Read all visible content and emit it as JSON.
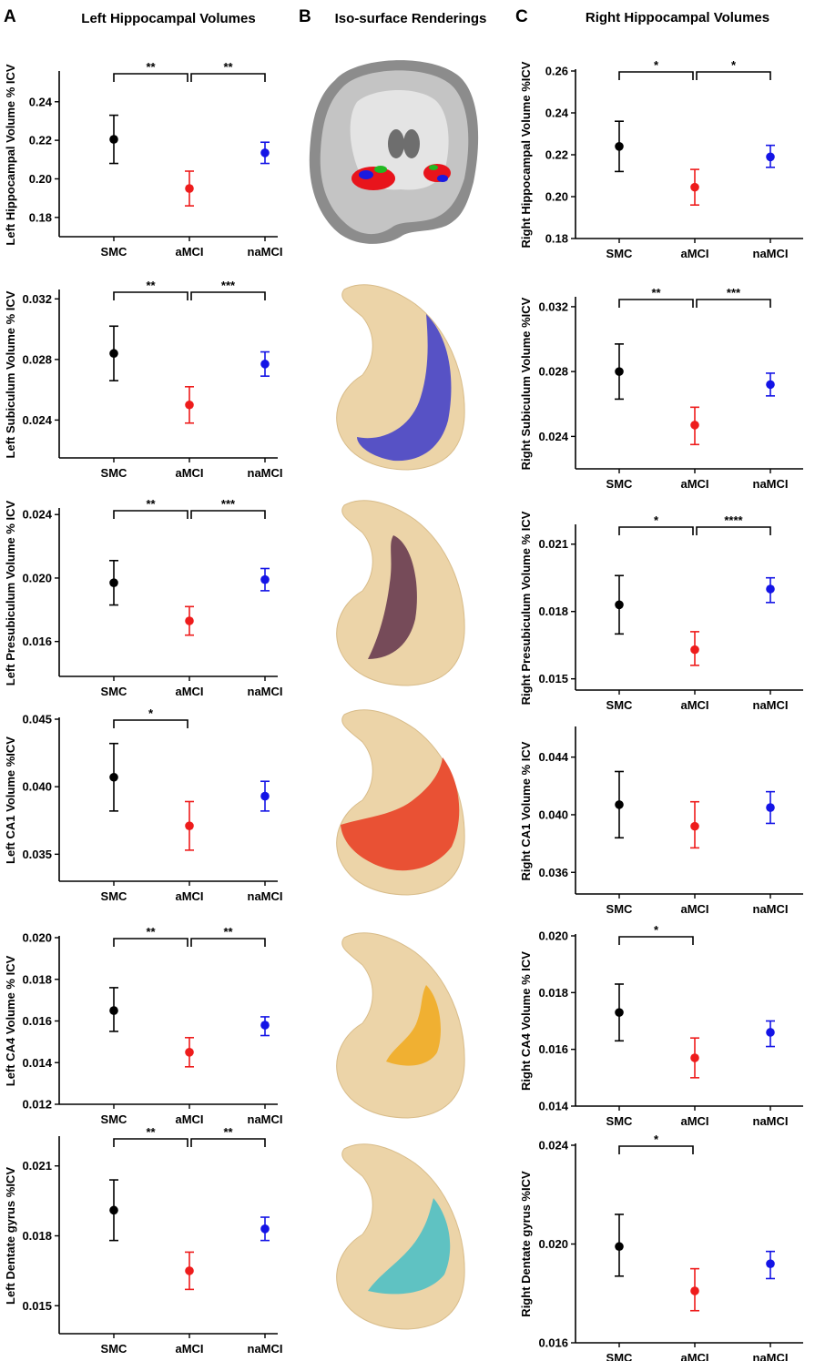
{
  "headers": {
    "panel_a": "A",
    "panel_b": "B",
    "panel_c": "C",
    "title_left": "Left Hippocampal Volumes",
    "title_middle": "Iso-surface Renderings",
    "title_right": "Right Hippocampal Volumes"
  },
  "colors": {
    "SMC": "#000000",
    "aMCI": "#ee1c1c",
    "naMCI": "#1414e6",
    "hippocampus_surface": "#ecd4a8",
    "subiculum": "#4a46c8",
    "presubiculum": "#6b3f52",
    "ca1": "#e8452a",
    "ca4": "#f0ac28",
    "dentate_gyrus": "#52c0c4"
  },
  "renderings": [
    {
      "name": "whole-brain-coronal-rendering"
    },
    {
      "name": "subiculum-rendering",
      "fill": "subiculum"
    },
    {
      "name": "presubiculum-rendering",
      "fill": "presubiculum"
    },
    {
      "name": "ca1-rendering",
      "fill": "ca1"
    },
    {
      "name": "ca4-rendering",
      "fill": "ca4"
    },
    {
      "name": "dentate-gyrus-rendering",
      "fill": "dentate_gyrus"
    }
  ],
  "chart_data": [
    {
      "id": "left-hippocampal",
      "type": "scatter",
      "ylabel": "Left Hippocampal Volume % ICV",
      "categories": [
        "SMC",
        "aMCI",
        "naMCI"
      ],
      "ylim": [
        0.17,
        0.255
      ],
      "yticks": [
        0.18,
        0.2,
        0.22,
        0.24
      ],
      "ytick_labels": [
        "0.18",
        "0.20",
        "0.22",
        "0.24"
      ],
      "means": [
        0.2205,
        0.195,
        0.2135
      ],
      "err_low": [
        0.208,
        0.186,
        0.208
      ],
      "err_high": [
        0.233,
        0.204,
        0.219
      ],
      "significance": [
        {
          "from": 0,
          "to": 1,
          "label": "**"
        },
        {
          "from": 1,
          "to": 2,
          "label": "**"
        }
      ]
    },
    {
      "id": "left-subiculum",
      "type": "scatter",
      "ylabel": "Left Subiculum Volume % ICV",
      "categories": [
        "SMC",
        "aMCI",
        "naMCI"
      ],
      "ylim": [
        0.0215,
        0.0325
      ],
      "yticks": [
        0.024,
        0.028,
        0.032
      ],
      "ytick_labels": [
        "0.024",
        "0.028",
        "0.032"
      ],
      "means": [
        0.0284,
        0.025,
        0.0277
      ],
      "err_low": [
        0.0266,
        0.0238,
        0.0269
      ],
      "err_high": [
        0.0302,
        0.0262,
        0.0285
      ],
      "significance": [
        {
          "from": 0,
          "to": 1,
          "label": "**"
        },
        {
          "from": 1,
          "to": 2,
          "label": "***"
        }
      ]
    },
    {
      "id": "left-presubiculum",
      "type": "scatter",
      "ylabel": "Left Presubiculum Volume  % ICV",
      "categories": [
        "SMC",
        "aMCI",
        "naMCI"
      ],
      "ylim": [
        0.0138,
        0.0243
      ],
      "yticks": [
        0.016,
        0.02,
        0.024
      ],
      "ytick_labels": [
        "0.016",
        "0.020",
        "0.024"
      ],
      "means": [
        0.0197,
        0.0173,
        0.0199
      ],
      "err_low": [
        0.0183,
        0.0164,
        0.0192
      ],
      "err_high": [
        0.0211,
        0.0182,
        0.0206
      ],
      "significance": [
        {
          "from": 0,
          "to": 1,
          "label": "**"
        },
        {
          "from": 1,
          "to": 2,
          "label": "***"
        }
      ]
    },
    {
      "id": "left-ca1",
      "type": "scatter",
      "ylabel": "Left CA1 Volume %ICV",
      "categories": [
        "SMC",
        "aMCI",
        "naMCI"
      ],
      "ylim": [
        0.033,
        0.045
      ],
      "yticks": [
        0.035,
        0.04,
        0.045
      ],
      "ytick_labels": [
        "0.035",
        "0.040",
        "0.045"
      ],
      "means": [
        0.0407,
        0.0371,
        0.0393
      ],
      "err_low": [
        0.0382,
        0.0353,
        0.0382
      ],
      "err_high": [
        0.0432,
        0.0389,
        0.0404
      ],
      "significance": [
        {
          "from": 0,
          "to": 1,
          "label": "*"
        }
      ]
    },
    {
      "id": "left-ca4",
      "type": "scatter",
      "ylabel": "Left CA4 Volume % ICV",
      "categories": [
        "SMC",
        "aMCI",
        "naMCI"
      ],
      "ylim": [
        0.012,
        0.02
      ],
      "yticks": [
        0.012,
        0.014,
        0.016,
        0.018,
        0.02
      ],
      "ytick_labels": [
        "0.012",
        "0.014",
        "0.016",
        "0.018",
        "0.020"
      ],
      "means": [
        0.0165,
        0.0145,
        0.0158
      ],
      "err_low": [
        0.0155,
        0.0138,
        0.0153
      ],
      "err_high": [
        0.0176,
        0.0152,
        0.0162
      ],
      "significance": [
        {
          "from": 0,
          "to": 1,
          "label": "**"
        },
        {
          "from": 1,
          "to": 2,
          "label": "**"
        }
      ]
    },
    {
      "id": "left-dentate",
      "type": "scatter",
      "ylabel": "Left Dentate gyrus %ICV",
      "categories": [
        "SMC",
        "aMCI",
        "naMCI"
      ],
      "ylim": [
        0.0138,
        0.0222
      ],
      "yticks": [
        0.015,
        0.018,
        0.021
      ],
      "ytick_labels": [
        "0.015",
        "0.018",
        "0.021"
      ],
      "means": [
        0.0191,
        0.0165,
        0.0183
      ],
      "err_low": [
        0.0178,
        0.0157,
        0.0178
      ],
      "err_high": [
        0.0204,
        0.0173,
        0.0188
      ],
      "significance": [
        {
          "from": 0,
          "to": 1,
          "label": "**"
        },
        {
          "from": 1,
          "to": 2,
          "label": "**"
        }
      ]
    },
    {
      "id": "right-hippocampal",
      "type": "scatter",
      "ylabel": "Right Hippocampal Volume %ICV",
      "categories": [
        "SMC",
        "aMCI",
        "naMCI"
      ],
      "ylim": [
        0.18,
        0.26
      ],
      "yticks": [
        0.18,
        0.2,
        0.22,
        0.24,
        0.26
      ],
      "ytick_labels": [
        "0.18",
        "0.20",
        "0.22",
        "0.24",
        "0.26"
      ],
      "means": [
        0.224,
        0.2045,
        0.219
      ],
      "err_low": [
        0.212,
        0.196,
        0.214
      ],
      "err_high": [
        0.236,
        0.213,
        0.2245
      ],
      "significance": [
        {
          "from": 0,
          "to": 1,
          "label": "*"
        },
        {
          "from": 1,
          "to": 2,
          "label": "*"
        }
      ]
    },
    {
      "id": "right-subiculum",
      "type": "scatter",
      "ylabel": "Right Subiculum Volume %ICV",
      "categories": [
        "SMC",
        "aMCI",
        "naMCI"
      ],
      "ylim": [
        0.022,
        0.0325
      ],
      "yticks": [
        0.024,
        0.028,
        0.032
      ],
      "ytick_labels": [
        "0.024",
        "0.028",
        "0.032"
      ],
      "means": [
        0.028,
        0.0247,
        0.0272
      ],
      "err_low": [
        0.0263,
        0.0235,
        0.0265
      ],
      "err_high": [
        0.0297,
        0.0258,
        0.0279
      ],
      "significance": [
        {
          "from": 0,
          "to": 1,
          "label": "**"
        },
        {
          "from": 1,
          "to": 2,
          "label": "***"
        }
      ]
    },
    {
      "id": "right-presubiculum",
      "type": "scatter",
      "ylabel": "Right Presubiculum Volume % ICV",
      "categories": [
        "SMC",
        "aMCI",
        "naMCI"
      ],
      "ylim": [
        0.0145,
        0.0218
      ],
      "yticks": [
        0.015,
        0.018,
        0.021
      ],
      "ytick_labels": [
        "0.015",
        "0.018",
        "0.021"
      ],
      "means": [
        0.0183,
        0.0163,
        0.019
      ],
      "err_low": [
        0.017,
        0.0156,
        0.0184
      ],
      "err_high": [
        0.0196,
        0.0171,
        0.0195
      ],
      "significance": [
        {
          "from": 0,
          "to": 1,
          "label": "*"
        },
        {
          "from": 1,
          "to": 2,
          "label": "****"
        }
      ]
    },
    {
      "id": "right-ca1",
      "type": "scatter",
      "ylabel": "Right CA1 Volume % ICV",
      "categories": [
        "SMC",
        "aMCI",
        "naMCI"
      ],
      "ylim": [
        0.0345,
        0.046
      ],
      "yticks": [
        0.036,
        0.04,
        0.044
      ],
      "ytick_labels": [
        "0.036",
        "0.040",
        "0.044"
      ],
      "means": [
        0.0407,
        0.0392,
        0.0405
      ],
      "err_low": [
        0.0384,
        0.0377,
        0.0394
      ],
      "err_high": [
        0.043,
        0.0409,
        0.0416
      ],
      "significance": []
    },
    {
      "id": "right-ca4",
      "type": "scatter",
      "ylabel": "Right CA4 Volume % ICV",
      "categories": [
        "SMC",
        "aMCI",
        "naMCI"
      ],
      "ylim": [
        0.014,
        0.02
      ],
      "yticks": [
        0.014,
        0.016,
        0.018,
        0.02
      ],
      "ytick_labels": [
        "0.014",
        "0.016",
        "0.018",
        "0.020"
      ],
      "means": [
        0.0173,
        0.0157,
        0.0166
      ],
      "err_low": [
        0.0163,
        0.015,
        0.0161
      ],
      "err_high": [
        0.0183,
        0.0164,
        0.017
      ],
      "significance": [
        {
          "from": 0,
          "to": 1,
          "label": "*"
        }
      ]
    },
    {
      "id": "right-dentate",
      "type": "scatter",
      "ylabel": "Right Dentate gyrus %ICV",
      "categories": [
        "SMC",
        "aMCI",
        "naMCI"
      ],
      "ylim": [
        0.016,
        0.024
      ],
      "yticks": [
        0.016,
        0.02,
        0.024
      ],
      "ytick_labels": [
        "0.016",
        "0.020",
        "0.024"
      ],
      "means": [
        0.0199,
        0.0181,
        0.0192
      ],
      "err_low": [
        0.0187,
        0.0173,
        0.0186
      ],
      "err_high": [
        0.0212,
        0.019,
        0.0197
      ],
      "significance": [
        {
          "from": 0,
          "to": 1,
          "label": "*"
        }
      ]
    }
  ]
}
